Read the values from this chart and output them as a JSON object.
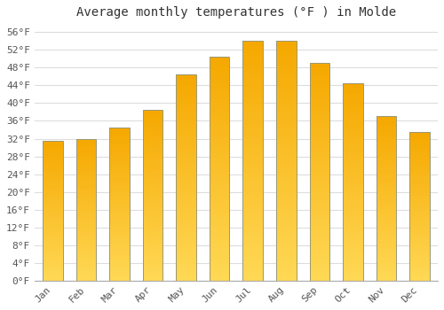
{
  "title": "Average monthly temperatures (°F ) in Molde",
  "months": [
    "Jan",
    "Feb",
    "Mar",
    "Apr",
    "May",
    "Jun",
    "Jul",
    "Aug",
    "Sep",
    "Oct",
    "Nov",
    "Dec"
  ],
  "values": [
    31.5,
    32.0,
    34.5,
    38.5,
    46.5,
    50.5,
    54.0,
    54.0,
    49.0,
    44.5,
    37.0,
    33.5
  ],
  "bar_color_top": "#F5A800",
  "bar_color_bottom": "#FFD855",
  "bar_edge_color": "#999977",
  "ylim": [
    0,
    58
  ],
  "yticks": [
    0,
    4,
    8,
    12,
    16,
    20,
    24,
    28,
    32,
    36,
    40,
    44,
    48,
    52,
    56
  ],
  "ytick_labels": [
    "0°F",
    "4°F",
    "8°F",
    "12°F",
    "16°F",
    "20°F",
    "24°F",
    "28°F",
    "32°F",
    "36°F",
    "40°F",
    "44°F",
    "48°F",
    "52°F",
    "56°F"
  ],
  "background_color": "#ffffff",
  "plot_bg_color": "#ffffff",
  "grid_color": "#dddddd",
  "title_fontsize": 10,
  "tick_fontsize": 8,
  "bar_width": 0.6,
  "figsize": [
    5.0,
    3.5
  ],
  "dpi": 100
}
